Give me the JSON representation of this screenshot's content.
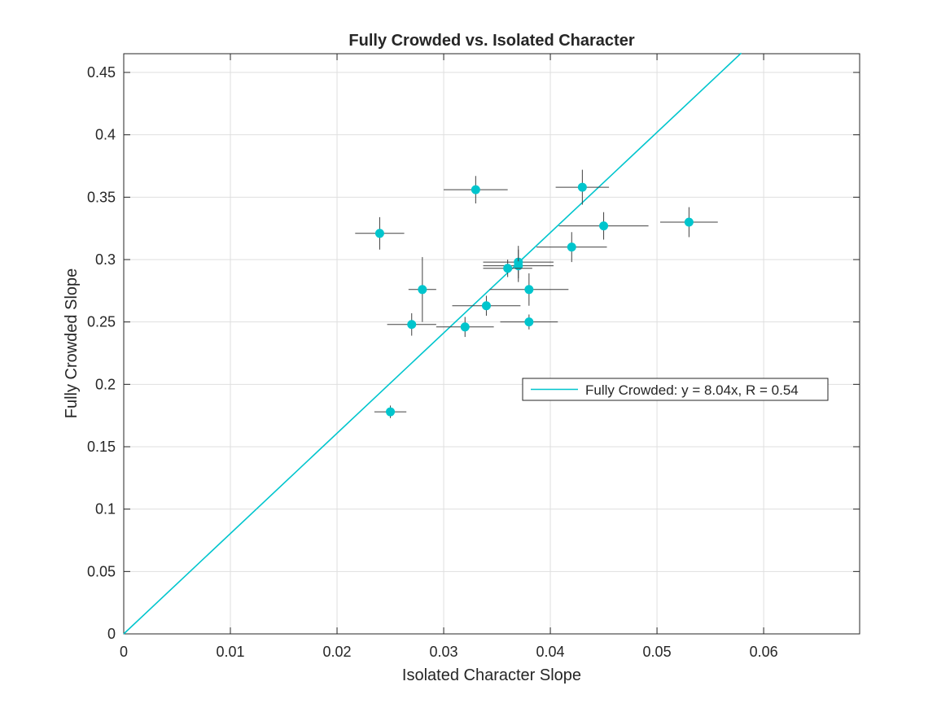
{
  "chart_data": {
    "type": "scatter",
    "title": "Fully Crowded vs. Isolated Character",
    "xlabel": "Isolated Character Slope",
    "ylabel": "Fully Crowded Slope",
    "xlim": [
      0,
      0.069
    ],
    "ylim": [
      0,
      0.465
    ],
    "xticks": [
      0,
      0.01,
      0.02,
      0.03,
      0.04,
      0.05,
      0.06
    ],
    "xtick_labels": [
      "0",
      "0.01",
      "0.02",
      "0.03",
      "0.04",
      "0.05",
      "0.06"
    ],
    "yticks": [
      0,
      0.05,
      0.1,
      0.15,
      0.2,
      0.25,
      0.3,
      0.35,
      0.4,
      0.45
    ],
    "ytick_labels": [
      "0",
      "0.05",
      "0.1",
      "0.15",
      "0.2",
      "0.25",
      "0.3",
      "0.35",
      "0.4",
      "0.45"
    ],
    "grid": true,
    "legend_position": "right",
    "colors": {
      "series": "#00c5cd",
      "errorbar": "#404040",
      "axis": "#262626",
      "grid": "#dfdfdf"
    },
    "series": [
      {
        "type": "errorbar-scatter",
        "points": [
          {
            "x": 0.024,
            "y": 0.321,
            "xneg": 0.0023,
            "xpos": 0.0023,
            "yneg": 0.013,
            "ypos": 0.013
          },
          {
            "x": 0.033,
            "y": 0.356,
            "xneg": 0.003,
            "xpos": 0.003,
            "yneg": 0.011,
            "ypos": 0.011
          },
          {
            "x": 0.043,
            "y": 0.358,
            "xneg": 0.0025,
            "xpos": 0.0025,
            "yneg": 0.014,
            "ypos": 0.014
          },
          {
            "x": 0.045,
            "y": 0.327,
            "xneg": 0.0042,
            "xpos": 0.0042,
            "yneg": 0.011,
            "ypos": 0.011
          },
          {
            "x": 0.053,
            "y": 0.33,
            "xneg": 0.0027,
            "xpos": 0.0027,
            "yneg": 0.012,
            "ypos": 0.012
          },
          {
            "x": 0.042,
            "y": 0.31,
            "xneg": 0.0033,
            "xpos": 0.0033,
            "yneg": 0.012,
            "ypos": 0.012
          },
          {
            "x": 0.037,
            "y": 0.298,
            "xneg": 0.0033,
            "xpos": 0.0033,
            "yneg": 0.013,
            "ypos": 0.013
          },
          {
            "x": 0.037,
            "y": 0.295,
            "xneg": 0.0033,
            "xpos": 0.0033,
            "yneg": 0.013,
            "ypos": 0.013
          },
          {
            "x": 0.036,
            "y": 0.293,
            "xneg": 0.0023,
            "xpos": 0.0023,
            "yneg": 0.007,
            "ypos": 0.007
          },
          {
            "x": 0.028,
            "y": 0.276,
            "xneg": 0.0013,
            "xpos": 0.0013,
            "yneg": 0.026,
            "ypos": 0.026
          },
          {
            "x": 0.038,
            "y": 0.276,
            "xneg": 0.0037,
            "xpos": 0.0037,
            "yneg": 0.013,
            "ypos": 0.013
          },
          {
            "x": 0.034,
            "y": 0.263,
            "xneg": 0.0032,
            "xpos": 0.0032,
            "yneg": 0.008,
            "ypos": 0.008
          },
          {
            "x": 0.027,
            "y": 0.248,
            "xneg": 0.0023,
            "xpos": 0.0023,
            "yneg": 0.009,
            "ypos": 0.009
          },
          {
            "x": 0.032,
            "y": 0.246,
            "xneg": 0.0027,
            "xpos": 0.0027,
            "yneg": 0.008,
            "ypos": 0.008
          },
          {
            "x": 0.038,
            "y": 0.25,
            "xneg": 0.0027,
            "xpos": 0.0027,
            "yneg": 0.006,
            "ypos": 0.006
          },
          {
            "x": 0.025,
            "y": 0.178,
            "xneg": 0.0015,
            "xpos": 0.0015,
            "yneg": 0.005,
            "ypos": 0.005
          }
        ]
      },
      {
        "name": "Fully Crowded: y = 8.04x, R = 0.54",
        "type": "line",
        "slope": 8.04,
        "x": [
          0,
          0.0579
        ]
      }
    ],
    "legend_entries": [
      "Fully Crowded: y = 8.04x, R = 0.54"
    ]
  }
}
